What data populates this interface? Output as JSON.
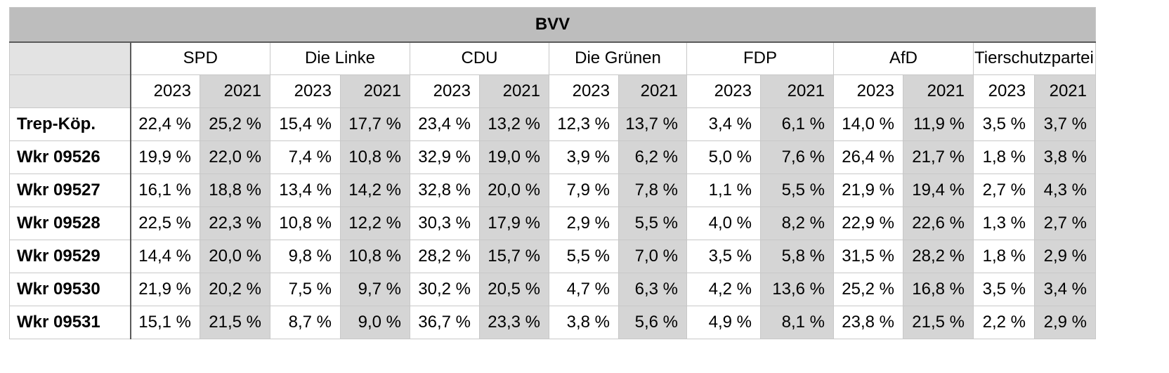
{
  "title": "BVV",
  "parties": [
    "SPD",
    "Die Linke",
    "CDU",
    "Die Grünen",
    "FDP",
    "AfD",
    "Tierschutzpartei"
  ],
  "years": [
    "2023",
    "2021"
  ],
  "rows": [
    {
      "label": "Trep-Köp.",
      "values": [
        "22,4 %",
        "25,2 %",
        "15,4 %",
        "17,7 %",
        "23,4 %",
        "13,2 %",
        "12,3 %",
        "13,7 %",
        "3,4 %",
        "6,1 %",
        "14,0 %",
        "11,9 %",
        "3,5 %",
        "3,7 %"
      ]
    },
    {
      "label": "Wkr 09526",
      "values": [
        "19,9 %",
        "22,0 %",
        "7,4 %",
        "10,8 %",
        "32,9 %",
        "19,0 %",
        "3,9 %",
        "6,2 %",
        "5,0 %",
        "7,6 %",
        "26,4 %",
        "21,7 %",
        "1,8 %",
        "3,8 %"
      ]
    },
    {
      "label": "Wkr 09527",
      "values": [
        "16,1 %",
        "18,8 %",
        "13,4 %",
        "14,2 %",
        "32,8 %",
        "20,0 %",
        "7,9 %",
        "7,8 %",
        "1,1 %",
        "5,5 %",
        "21,9 %",
        "19,4 %",
        "2,7 %",
        "4,3 %"
      ]
    },
    {
      "label": "Wkr 09528",
      "values": [
        "22,5 %",
        "22,3 %",
        "10,8 %",
        "12,2 %",
        "30,3 %",
        "17,9 %",
        "2,9 %",
        "5,5 %",
        "4,0 %",
        "8,2 %",
        "22,9 %",
        "22,6 %",
        "1,3 %",
        "2,7 %"
      ]
    },
    {
      "label": "Wkr 09529",
      "values": [
        "14,4 %",
        "20,0 %",
        "9,8 %",
        "10,8 %",
        "28,2 %",
        "15,7 %",
        "5,5 %",
        "7,0 %",
        "3,5 %",
        "5,8 %",
        "31,5 %",
        "28,2 %",
        "1,8 %",
        "2,9 %"
      ]
    },
    {
      "label": "Wkr 09530",
      "values": [
        "21,9 %",
        "20,2 %",
        "7,5 %",
        "9,7 %",
        "30,2 %",
        "20,5 %",
        "4,7 %",
        "6,3 %",
        "4,2 %",
        "13,6 %",
        "25,2 %",
        "16,8 %",
        "3,5 %",
        "3,4 %"
      ]
    },
    {
      "label": "Wkr 09531",
      "values": [
        "15,1 %",
        "21,5 %",
        "8,7 %",
        "9,0 %",
        "36,7 %",
        "23,3 %",
        "3,8 %",
        "5,6 %",
        "4,9 %",
        "8,1 %",
        "23,8 %",
        "21,5 %",
        "2,2 %",
        "2,9 %"
      ]
    }
  ]
}
